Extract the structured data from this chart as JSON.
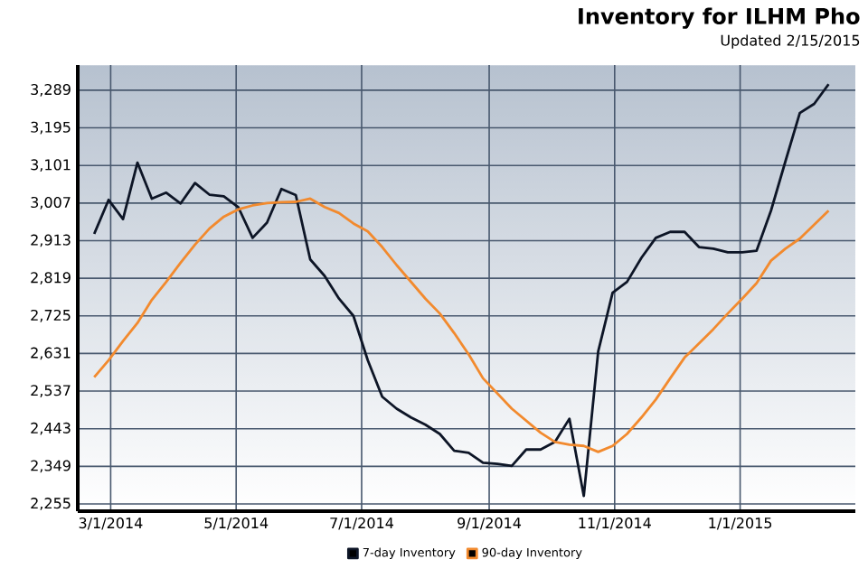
{
  "chart_data": {
    "type": "line",
    "title": "Inventory for ILHM Pho",
    "subtitle": "Updated 2/15/2015",
    "x": [
      "2014-02-21",
      "2014-02-28",
      "2014-03-07",
      "2014-03-14",
      "2014-03-21",
      "2014-03-28",
      "2014-04-04",
      "2014-04-11",
      "2014-04-18",
      "2014-04-25",
      "2014-05-02",
      "2014-05-09",
      "2014-05-16",
      "2014-05-23",
      "2014-05-30",
      "2014-06-06",
      "2014-06-13",
      "2014-06-20",
      "2014-06-27",
      "2014-07-04",
      "2014-07-11",
      "2014-07-18",
      "2014-07-25",
      "2014-08-01",
      "2014-08-08",
      "2014-08-15",
      "2014-08-22",
      "2014-08-29",
      "2014-09-05",
      "2014-09-12",
      "2014-09-19",
      "2014-09-26",
      "2014-10-03",
      "2014-10-10",
      "2014-10-17",
      "2014-10-24",
      "2014-10-31",
      "2014-11-07",
      "2014-11-14",
      "2014-11-21",
      "2014-11-28",
      "2014-12-05",
      "2014-12-12",
      "2014-12-19",
      "2014-12-26",
      "2015-01-02",
      "2015-01-09",
      "2015-01-16",
      "2015-01-23",
      "2015-01-30",
      "2015-02-06",
      "2015-02-13"
    ],
    "series": [
      {
        "name": "7-day Inventory",
        "color": "#0d1526",
        "values": [
          2930,
          3015,
          2967,
          3108,
          3018,
          3033,
          3006,
          3057,
          3028,
          3024,
          2997,
          2920,
          2958,
          3042,
          3027,
          2866,
          2825,
          2768,
          2725,
          2614,
          2523,
          2493,
          2471,
          2453,
          2430,
          2388,
          2383,
          2358,
          2355,
          2350,
          2391,
          2391,
          2410,
          2468,
          2275,
          2636,
          2783,
          2810,
          2870,
          2920,
          2935,
          2935,
          2897,
          2893,
          2884,
          2884,
          2888,
          2988,
          3111,
          3232,
          3255,
          3304
        ]
      },
      {
        "name": "90-day Inventory",
        "color": "#f28a2e",
        "values": [
          2572,
          2614,
          2662,
          2707,
          2765,
          2810,
          2858,
          2903,
          2943,
          2973,
          2991,
          3001,
          3007,
          3009,
          3010,
          3018,
          2997,
          2982,
          2956,
          2936,
          2897,
          2852,
          2810,
          2768,
          2731,
          2682,
          2629,
          2569,
          2531,
          2493,
          2463,
          2433,
          2410,
          2403,
          2400,
          2385,
          2400,
          2430,
          2471,
          2516,
          2569,
          2621,
          2656,
          2692,
          2731,
          2768,
          2807,
          2863,
          2893,
          2918,
          2953,
          2988
        ]
      }
    ],
    "xlim": [
      "2014-02-13",
      "2015-02-26"
    ],
    "xticks": [
      {
        "value": "2014-03-01",
        "label": "3/1/2014"
      },
      {
        "value": "2014-05-01",
        "label": "5/1/2014"
      },
      {
        "value": "2014-07-01",
        "label": "7/1/2014"
      },
      {
        "value": "2014-09-01",
        "label": "9/1/2014"
      },
      {
        "value": "2014-11-01",
        "label": "11/1/2014"
      },
      {
        "value": "2015-01-01",
        "label": "1/1/2015"
      }
    ],
    "ylim": [
      2237,
      3352
    ],
    "yticks": [
      {
        "value": 2255,
        "label": "2,255"
      },
      {
        "value": 2349,
        "label": "2,349"
      },
      {
        "value": 2443,
        "label": "2,443"
      },
      {
        "value": 2537,
        "label": "2,537"
      },
      {
        "value": 2631,
        "label": "2,631"
      },
      {
        "value": 2725,
        "label": "2,725"
      },
      {
        "value": 2819,
        "label": "2,819"
      },
      {
        "value": 2913,
        "label": "2,913"
      },
      {
        "value": 3007,
        "label": "3,007"
      },
      {
        "value": 3101,
        "label": "3,101"
      },
      {
        "value": 3195,
        "label": "3,195"
      },
      {
        "value": 3289,
        "label": "3,289"
      }
    ],
    "grid": true,
    "legend": "bottom",
    "line_style": "solid"
  }
}
